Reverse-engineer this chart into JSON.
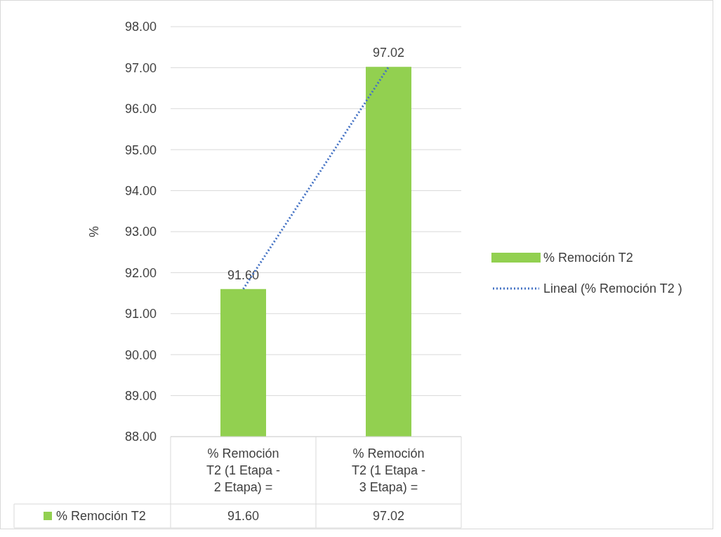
{
  "chart_data": {
    "type": "bar",
    "ylabel": "%",
    "categories": [
      "% Remoción T2 (1 Etapa - 2 Etapa) =",
      "% Remoción T2 (1 Etapa - 3 Etapa) ="
    ],
    "series": [
      {
        "name": "% Remoción T2",
        "color": "#92d050",
        "values": [
          91.6,
          97.02
        ],
        "value_labels": [
          "91.60",
          "97.02"
        ]
      },
      {
        "name": "Lineal (% Remoción T2 )",
        "type": "line",
        "color": "#4472c4",
        "line_style": "dotted",
        "marker": "none",
        "values": [
          91.6,
          97.02
        ]
      }
    ],
    "ylim": [
      88,
      98
    ],
    "yticks": [
      {
        "value": 88,
        "label": "88.00"
      },
      {
        "value": 89,
        "label": "89.00"
      },
      {
        "value": 90,
        "label": "90.00"
      },
      {
        "value": 91,
        "label": "91.00"
      },
      {
        "value": 92,
        "label": "92.00"
      },
      {
        "value": 93,
        "label": "93.00"
      },
      {
        "value": 94,
        "label": "94.00"
      },
      {
        "value": 95,
        "label": "95.00"
      },
      {
        "value": 96,
        "label": "96.00"
      },
      {
        "value": 97,
        "label": "97.00"
      },
      {
        "value": 98,
        "label": "98.00"
      }
    ],
    "grid": "y",
    "legend": "right"
  }
}
